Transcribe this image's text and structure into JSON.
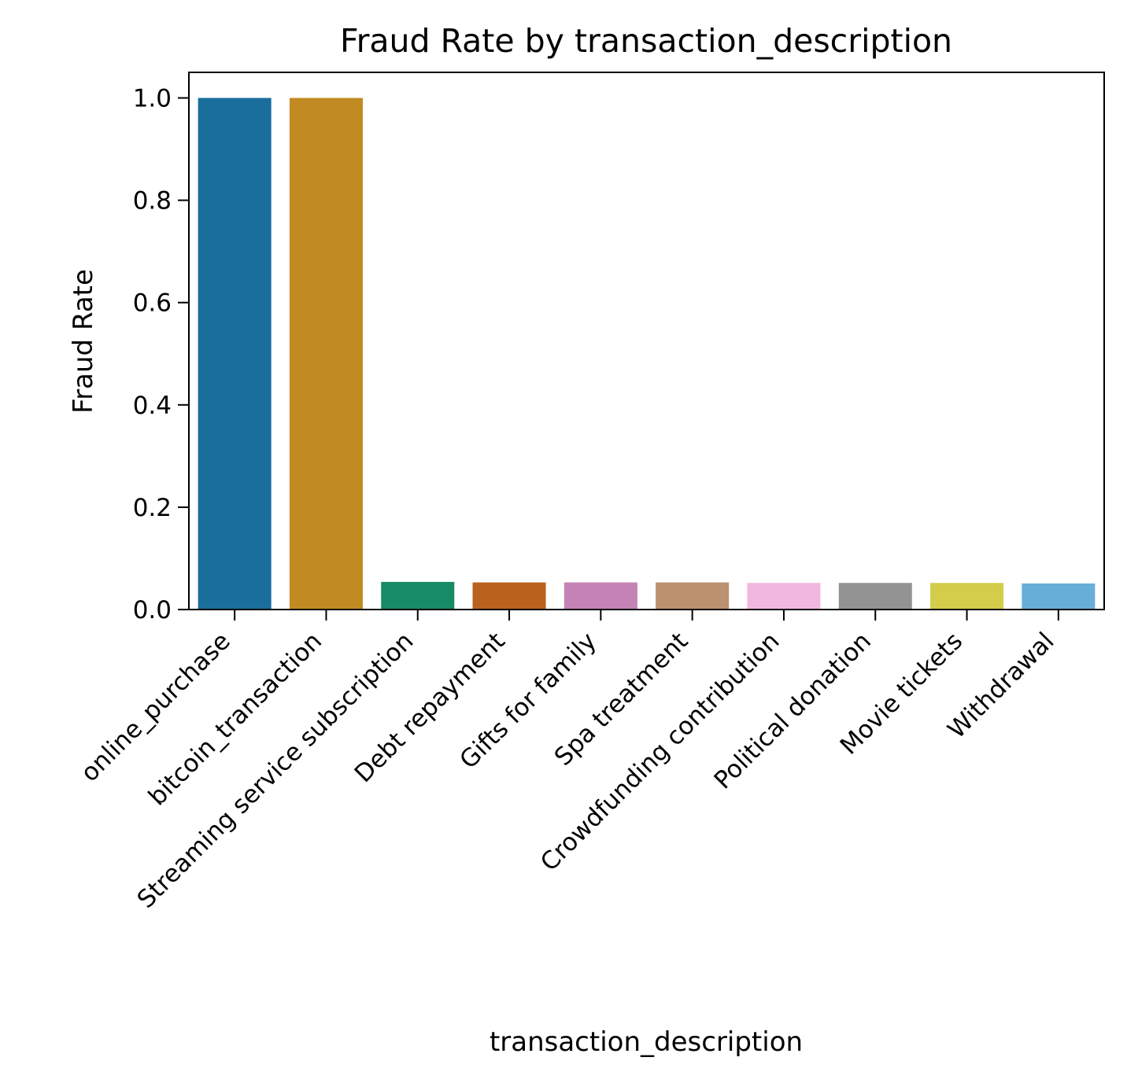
{
  "chart_data": {
    "type": "bar",
    "title": "Fraud Rate by transaction_description",
    "xlabel": "transaction_description",
    "ylabel": "Fraud Rate",
    "categories": [
      "online_purchase",
      "bitcoin_transaction",
      "Streaming service subscription",
      "Debt repayment",
      "Gifts for family",
      "Spa treatment",
      "Crowdfunding contribution",
      "Political donation",
      "Movie tickets",
      "Withdrawal"
    ],
    "values": [
      1.0,
      1.0,
      0.054,
      0.053,
      0.053,
      0.053,
      0.052,
      0.052,
      0.052,
      0.051
    ],
    "colors": [
      "#1a6e9b",
      "#c28a22",
      "#178a66",
      "#b8621e",
      "#c383b6",
      "#bb9170",
      "#f1b8df",
      "#939393",
      "#d3cd4b",
      "#67aed8"
    ],
    "ylim": [
      0,
      1.05
    ],
    "yticks": [
      0.0,
      0.2,
      0.4,
      0.6,
      0.8,
      1.0
    ],
    "ytick_labels": [
      "0.0",
      "0.2",
      "0.4",
      "0.6",
      "0.8",
      "1.0"
    ],
    "grid": false,
    "legend": "none"
  }
}
